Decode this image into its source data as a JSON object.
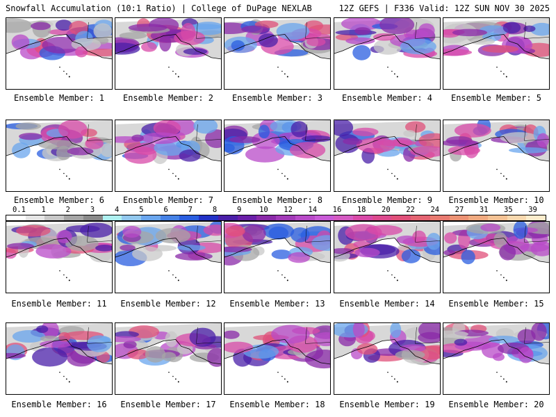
{
  "header": {
    "left": "Snowfall Accumulation (10:1 Ratio) | College of DuPage NEXLAB",
    "right": "12Z GEFS | F336 Valid: 12Z SUN NOV 30 2025"
  },
  "panels": [
    {
      "label": "Ensemble Member: 1"
    },
    {
      "label": "Ensemble Member: 2"
    },
    {
      "label": "Ensemble Member: 3"
    },
    {
      "label": "Ensemble Member: 4"
    },
    {
      "label": "Ensemble Member: 5"
    },
    {
      "label": "Ensemble Member: 6"
    },
    {
      "label": "Ensemble Member: 7"
    },
    {
      "label": "Ensemble Member: 8"
    },
    {
      "label": "Ensemble Member: 9"
    },
    {
      "label": "Ensemble Member: 10"
    },
    {
      "label": "Ensemble Member: 11"
    },
    {
      "label": "Ensemble Member: 12"
    },
    {
      "label": "Ensemble Member: 13"
    },
    {
      "label": "Ensemble Member: 14"
    },
    {
      "label": "Ensemble Member: 15"
    },
    {
      "label": "Ensemble Member: 16"
    },
    {
      "label": "Ensemble Member: 17"
    },
    {
      "label": "Ensemble Member: 18"
    },
    {
      "label": "Ensemble Member: 19"
    },
    {
      "label": "Ensemble Member: 20"
    }
  ],
  "colorbar": {
    "ticks": [
      "0.1",
      "1",
      "2",
      "3",
      "4",
      "5",
      "6",
      "7",
      "8",
      "9",
      "10",
      "12",
      "14",
      "16",
      "18",
      "20",
      "22",
      "24",
      "27",
      "31",
      "35",
      "39"
    ],
    "colors": [
      "#ffffff",
      "#e6e6e6",
      "#c8c8c8",
      "#a6a6a6",
      "#8a8a8a",
      "#aef0f0",
      "#92c8ee",
      "#6aa6ee",
      "#4682e6",
      "#2a5ee0",
      "#2232c6",
      "#4a1fa8",
      "#6a1fa8",
      "#8a2aa8",
      "#a23ab8",
      "#b84ac8",
      "#c85ad6",
      "#d45ac2",
      "#d84aa8",
      "#dc4a8e",
      "#e0507a",
      "#e46472",
      "#e87a70",
      "#ec9274",
      "#f0aa80",
      "#f4c294",
      "#f8d8ae",
      "#fceccc"
    ]
  }
}
